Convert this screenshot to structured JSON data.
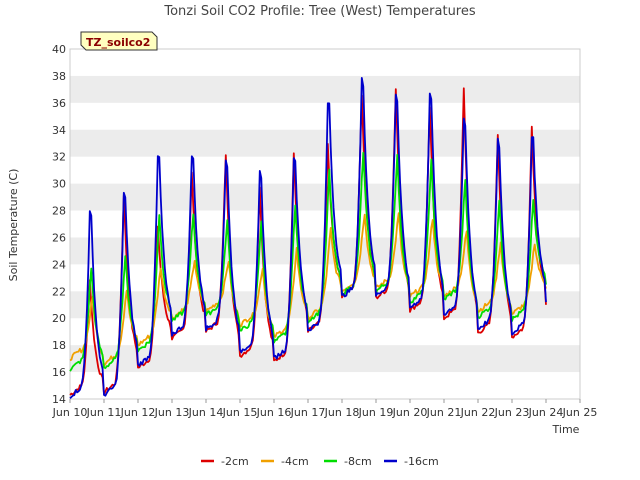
{
  "chart_data": {
    "type": "line",
    "title": "Tonzi Soil CO2 Profile: Tree (West) Temperatures",
    "xlabel": "Time",
    "ylabel": "Soil Temperature (C)",
    "badge": "TZ_soilco2",
    "xlim": [
      10,
      25
    ],
    "ylim": [
      14,
      40
    ],
    "x_ticks": [
      10,
      11,
      12,
      13,
      14,
      15,
      16,
      17,
      18,
      19,
      20,
      21,
      22,
      23,
      24,
      25
    ],
    "x_tick_labels": [
      "Jun 10",
      "Jun 11",
      "Jun 12",
      "Jun 13",
      "Jun 14",
      "Jun 15",
      "Jun 16",
      "Jun 17",
      "Jun 18",
      "Jun 19",
      "Jun 20",
      "Jun 21",
      "Jun 22",
      "Jun 23",
      "Jun 24",
      "Jun 25"
    ],
    "y_ticks": [
      14,
      16,
      18,
      20,
      22,
      24,
      26,
      28,
      30,
      32,
      34,
      36,
      38,
      40
    ],
    "grid": "horizontal bands",
    "legend_position": "bottom",
    "daily_extremes_note_days": [
      10,
      11,
      12,
      13,
      14,
      15,
      16,
      17,
      18,
      19,
      20,
      21,
      22,
      23
    ],
    "series": [
      {
        "name": "-2cm",
        "color": "#dd0000",
        "daily_min": [
          14.3,
          14.5,
          16.3,
          18.5,
          19.0,
          17.2,
          16.8,
          19.0,
          21.7,
          21.5,
          20.6,
          20.0,
          18.9,
          18.6
        ],
        "daily_max": [
          23.0,
          29.5,
          27.0,
          31.0,
          32.5,
          30.0,
          32.5,
          33.0,
          37.0,
          37.5,
          36.0,
          37.5,
          34.0,
          34.5
        ],
        "last": 21.0
      },
      {
        "name": "-4cm",
        "color": "#f0a000",
        "daily_min": [
          17.0,
          16.6,
          18.0,
          20.0,
          20.5,
          19.5,
          18.6,
          20.0,
          22.0,
          22.2,
          21.6,
          21.6,
          20.5,
          20.3
        ],
        "daily_max": [
          21.8,
          22.3,
          24.0,
          24.5,
          24.5,
          24.0,
          25.4,
          26.8,
          28.1,
          28.0,
          27.7,
          26.7,
          25.9,
          25.8
        ],
        "last": 22.2
      },
      {
        "name": "-8cm",
        "color": "#00dd00",
        "daily_min": [
          16.2,
          16.3,
          17.6,
          19.8,
          20.2,
          19.0,
          18.2,
          19.8,
          21.8,
          22.0,
          21.2,
          21.4,
          20.1,
          19.9
        ],
        "daily_max": [
          24.0,
          25.0,
          28.0,
          28.0,
          27.5,
          27.5,
          28.8,
          31.2,
          32.7,
          32.5,
          32.0,
          30.5,
          29.0,
          29.0
        ],
        "last": 22.5
      },
      {
        "name": "-16cm",
        "color": "#0000cc",
        "daily_min": [
          14.2,
          14.3,
          16.5,
          18.8,
          19.2,
          17.5,
          17.0,
          19.1,
          21.6,
          21.7,
          20.8,
          20.3,
          19.2,
          18.9
        ],
        "daily_max": [
          29.6,
          31.1,
          34.0,
          33.8,
          33.4,
          32.5,
          33.8,
          38.2,
          39.8,
          38.6,
          38.9,
          36.7,
          35.0,
          35.3
        ],
        "last": 21.2
      }
    ]
  }
}
